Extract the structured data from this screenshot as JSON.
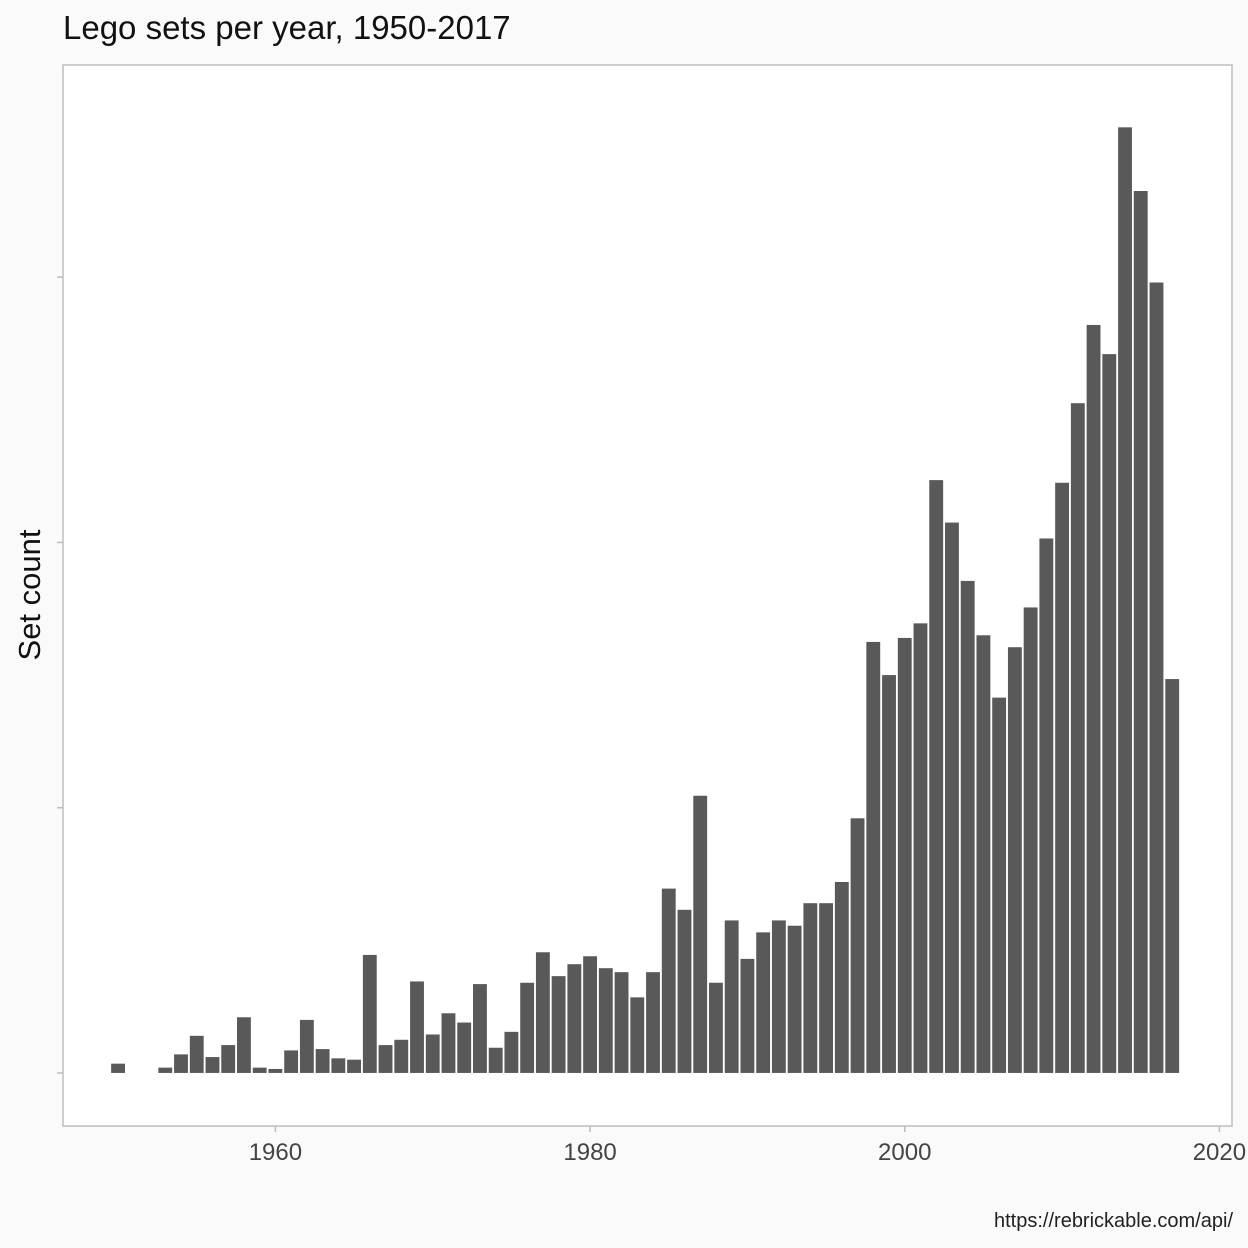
{
  "chart_data": {
    "type": "bar",
    "title": "Lego sets per year, 1950-2017",
    "xlabel": "",
    "ylabel": "Set count",
    "caption": "https://rebrickable.com/api/",
    "xlim": [
      1946.5,
      2020.8
    ],
    "ylim": [
      -40,
      760
    ],
    "x_ticks": [
      1960,
      1980,
      2000,
      2020
    ],
    "y_ticks": [
      0,
      200,
      400,
      600
    ],
    "y_tick_labels_shown": false,
    "grid": false,
    "bar_color": "#595959",
    "frame_color": "#bdbdbd",
    "x": [
      1950,
      1953,
      1954,
      1955,
      1956,
      1957,
      1958,
      1959,
      1960,
      1961,
      1962,
      1963,
      1964,
      1965,
      1966,
      1967,
      1968,
      1969,
      1970,
      1971,
      1972,
      1973,
      1974,
      1975,
      1976,
      1977,
      1978,
      1979,
      1980,
      1981,
      1982,
      1983,
      1984,
      1985,
      1986,
      1987,
      1988,
      1989,
      1990,
      1991,
      1992,
      1993,
      1994,
      1995,
      1996,
      1997,
      1998,
      1999,
      2000,
      2001,
      2002,
      2003,
      2004,
      2005,
      2006,
      2007,
      2008,
      2009,
      2010,
      2011,
      2012,
      2013,
      2014,
      2015,
      2016,
      2017
    ],
    "values": [
      7,
      4,
      14,
      28,
      12,
      21,
      42,
      4,
      3,
      17,
      40,
      18,
      11,
      10,
      89,
      21,
      25,
      69,
      29,
      45,
      38,
      67,
      19,
      31,
      68,
      91,
      73,
      82,
      88,
      79,
      76,
      57,
      76,
      139,
      123,
      209,
      68,
      115,
      86,
      106,
      115,
      111,
      128,
      128,
      144,
      192,
      325,
      300,
      328,
      339,
      447,
      415,
      371,
      330,
      283,
      321,
      351,
      403,
      445,
      505,
      564,
      542,
      713,
      665,
      596,
      297
    ]
  }
}
